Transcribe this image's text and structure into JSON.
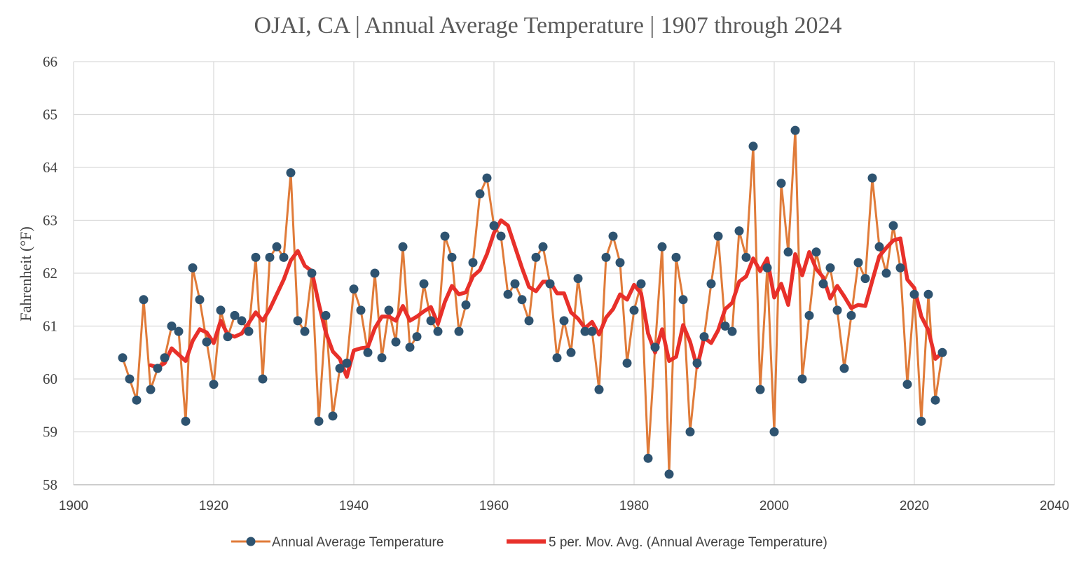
{
  "chart_data": {
    "type": "line",
    "title": "OJAI, CA | Annual Average Temperature | 1907 through 2024",
    "xlabel": "",
    "ylabel": "Fahrenheit (°F)",
    "xlim": [
      1900,
      2040
    ],
    "ylim": [
      58,
      66
    ],
    "x_ticks": [
      "1900",
      "1920",
      "1940",
      "1960",
      "1980",
      "2000",
      "2020",
      "2040"
    ],
    "y_ticks": [
      "58",
      "59",
      "60",
      "61",
      "62",
      "63",
      "64",
      "65",
      "66"
    ],
    "grid": true,
    "legend_position": "bottom",
    "colors": {
      "annual": "#E07B39",
      "marker": "#2E5370",
      "moving_avg": "#E8302A"
    },
    "series": [
      {
        "name": "Annual Average Temperature",
        "x": [
          1907,
          1908,
          1909,
          1910,
          1911,
          1912,
          1913,
          1914,
          1915,
          1916,
          1917,
          1918,
          1919,
          1920,
          1921,
          1922,
          1923,
          1924,
          1925,
          1926,
          1927,
          1928,
          1929,
          1930,
          1931,
          1932,
          1933,
          1934,
          1935,
          1936,
          1937,
          1938,
          1939,
          1940,
          1941,
          1942,
          1943,
          1944,
          1945,
          1946,
          1947,
          1948,
          1949,
          1950,
          1951,
          1952,
          1953,
          1954,
          1955,
          1956,
          1957,
          1958,
          1959,
          1960,
          1961,
          1962,
          1963,
          1964,
          1965,
          1966,
          1967,
          1968,
          1969,
          1970,
          1971,
          1972,
          1973,
          1974,
          1975,
          1976,
          1977,
          1978,
          1979,
          1980,
          1981,
          1982,
          1983,
          1984,
          1985,
          1986,
          1987,
          1988,
          1989,
          1990,
          1991,
          1992,
          1993,
          1994,
          1995,
          1996,
          1997,
          1998,
          1999,
          2000,
          2001,
          2002,
          2003,
          2004,
          2005,
          2006,
          2007,
          2008,
          2009,
          2010,
          2011,
          2012,
          2013,
          2014,
          2015,
          2016,
          2017,
          2018,
          2019,
          2020,
          2021,
          2022,
          2023,
          2024
        ],
        "values": [
          60.4,
          60.0,
          59.6,
          61.5,
          59.8,
          60.2,
          60.4,
          61.0,
          60.9,
          59.2,
          62.1,
          61.5,
          60.7,
          59.9,
          61.3,
          60.8,
          61.2,
          61.1,
          60.9,
          62.3,
          60.0,
          62.3,
          62.5,
          62.3,
          63.9,
          61.1,
          60.9,
          62.0,
          59.2,
          61.2,
          59.3,
          60.2,
          60.3,
          61.7,
          61.3,
          60.5,
          62.0,
          60.4,
          61.3,
          60.7,
          62.5,
          60.6,
          60.8,
          61.8,
          61.1,
          60.9,
          62.7,
          62.3,
          60.9,
          61.4,
          62.2,
          63.5,
          63.8,
          62.9,
          62.7,
          61.6,
          61.8,
          61.5,
          61.1,
          62.3,
          62.5,
          61.8,
          60.4,
          61.1,
          60.5,
          61.9,
          60.9,
          60.9,
          59.8,
          62.3,
          62.7,
          62.2,
          60.3,
          61.3,
          61.8,
          58.5,
          60.6,
          62.5,
          58.2,
          62.3,
          61.5,
          59.0,
          60.3,
          60.8,
          61.8,
          62.7,
          61.0,
          60.9,
          62.8,
          62.3,
          64.4,
          59.8,
          62.1,
          59.0,
          63.7,
          62.4,
          64.7,
          60.0,
          61.2,
          62.4,
          61.8,
          62.1,
          61.3,
          60.2,
          61.2,
          62.2,
          61.9,
          63.8,
          62.5,
          62.0,
          62.9,
          62.1,
          59.9,
          61.6,
          59.2,
          61.6,
          59.6,
          60.5
        ]
      },
      {
        "name": "5 per. Mov. Avg. (Annual Average Temperature)",
        "x": [
          1911,
          1912,
          1913,
          1914,
          1915,
          1916,
          1917,
          1918,
          1919,
          1920,
          1921,
          1922,
          1923,
          1924,
          1925,
          1926,
          1927,
          1928,
          1929,
          1930,
          1931,
          1932,
          1933,
          1934,
          1935,
          1936,
          1937,
          1938,
          1939,
          1940,
          1941,
          1942,
          1943,
          1944,
          1945,
          1946,
          1947,
          1948,
          1949,
          1950,
          1951,
          1952,
          1953,
          1954,
          1955,
          1956,
          1957,
          1958,
          1959,
          1960,
          1961,
          1962,
          1963,
          1964,
          1965,
          1966,
          1967,
          1968,
          1969,
          1970,
          1971,
          1972,
          1973,
          1974,
          1975,
          1976,
          1977,
          1978,
          1979,
          1980,
          1981,
          1982,
          1983,
          1984,
          1985,
          1986,
          1987,
          1988,
          1989,
          1990,
          1991,
          1992,
          1993,
          1994,
          1995,
          1996,
          1997,
          1998,
          1999,
          2000,
          2001,
          2002,
          2003,
          2004,
          2005,
          2006,
          2007,
          2008,
          2009,
          2010,
          2011,
          2012,
          2013,
          2014,
          2015,
          2016,
          2017,
          2018,
          2019,
          2020,
          2021,
          2022,
          2023,
          2024
        ],
        "values": [
          60.26,
          60.22,
          60.3,
          60.58,
          60.46,
          60.34,
          60.72,
          60.94,
          60.88,
          60.68,
          61.1,
          60.84,
          60.8,
          60.86,
          61.06,
          61.26,
          61.1,
          61.32,
          61.6,
          61.88,
          62.24,
          62.42,
          62.14,
          62.04,
          61.42,
          60.88,
          60.52,
          60.38,
          60.04,
          60.54,
          60.58,
          60.6,
          60.96,
          61.18,
          61.18,
          61.1,
          61.38,
          61.1,
          61.18,
          61.28,
          61.36,
          61.04,
          61.46,
          61.76,
          61.6,
          61.64,
          61.94,
          62.06,
          62.36,
          62.76,
          63.0,
          62.9,
          62.5,
          62.1,
          61.74,
          61.66,
          61.84,
          61.84,
          61.62,
          61.62,
          61.26,
          61.14,
          60.96,
          61.08,
          60.84,
          61.16,
          61.32,
          61.6,
          61.5,
          61.78,
          61.62,
          60.86,
          60.5,
          60.94,
          60.34,
          60.42,
          61.02,
          60.7,
          60.22,
          60.78,
          60.68,
          60.92,
          61.32,
          61.44,
          61.84,
          61.94,
          62.28,
          62.04,
          62.28,
          61.54,
          61.8,
          61.4,
          62.36,
          61.96,
          62.4,
          62.08,
          61.92,
          61.52,
          61.76,
          61.56,
          61.34,
          61.4,
          61.38,
          61.86,
          62.32,
          62.48,
          62.62,
          62.66,
          61.88,
          61.72,
          61.18,
          60.92,
          60.38,
          60.5
        ]
      }
    ]
  }
}
